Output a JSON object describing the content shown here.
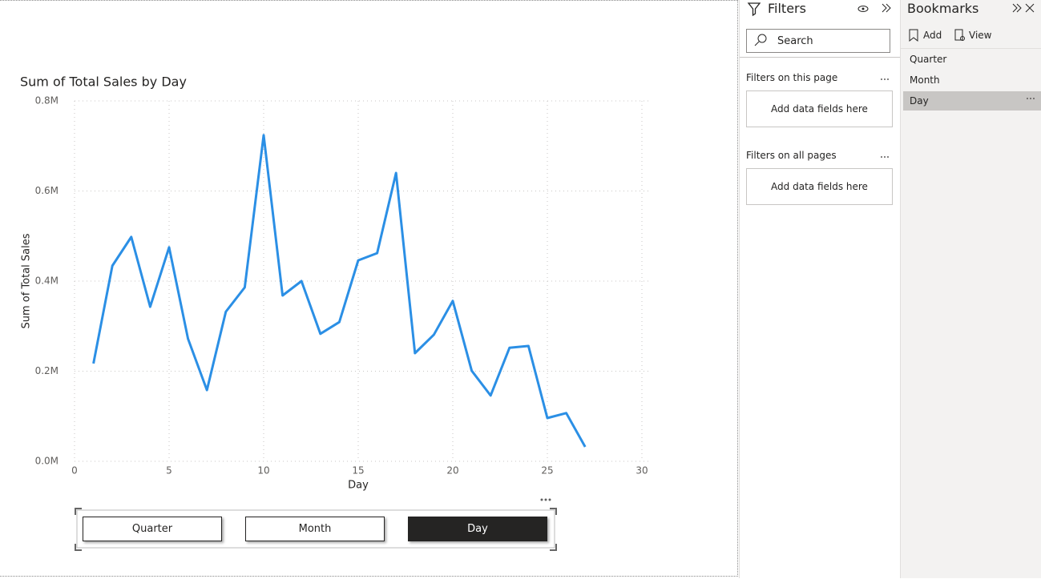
{
  "chart_data": {
    "type": "line",
    "title": "Sum of Total Sales by Day",
    "x_label": "Day",
    "y_label": "Sum of Total Sales",
    "x": [
      1,
      2,
      3,
      4,
      5,
      6,
      7,
      8,
      9,
      10,
      11,
      12,
      13,
      14,
      15,
      16,
      17,
      18,
      19,
      20,
      21,
      22,
      23,
      24,
      25,
      26,
      27
    ],
    "values": [
      217000,
      434000,
      498000,
      343000,
      475000,
      272000,
      158000,
      332000,
      386000,
      724000,
      368000,
      400000,
      283000,
      309000,
      446000,
      462000,
      640000,
      240000,
      281000,
      356000,
      201000,
      146000,
      252000,
      256000,
      96000,
      107000,
      32000
    ],
    "color": "#2b8fe5",
    "xlim": [
      0,
      30
    ],
    "xticks": [
      0,
      5,
      10,
      15,
      20,
      25,
      30
    ],
    "ylim": [
      0,
      800000
    ],
    "yticks": [
      {
        "value": 0,
        "label": "0.0M"
      },
      {
        "value": 200000,
        "label": "0.2M"
      },
      {
        "value": 400000,
        "label": "0.4M"
      },
      {
        "value": 600000,
        "label": "0.6M"
      },
      {
        "value": 800000,
        "label": "0.8M"
      }
    ],
    "grid": true
  },
  "buttons": [
    "Quarter",
    "Month",
    "Day"
  ],
  "filters": {
    "title": "Filters",
    "search": "Search",
    "sections": [
      {
        "title": "Filters on this page",
        "placeholder": "Add data fields here"
      },
      {
        "title": "Filters on all pages",
        "placeholder": "Add data fields here"
      }
    ]
  },
  "bookmarks": {
    "title": "Bookmarks",
    "add": "Add",
    "view": "View",
    "items": [
      "Quarter",
      "Month",
      "Day"
    ]
  }
}
